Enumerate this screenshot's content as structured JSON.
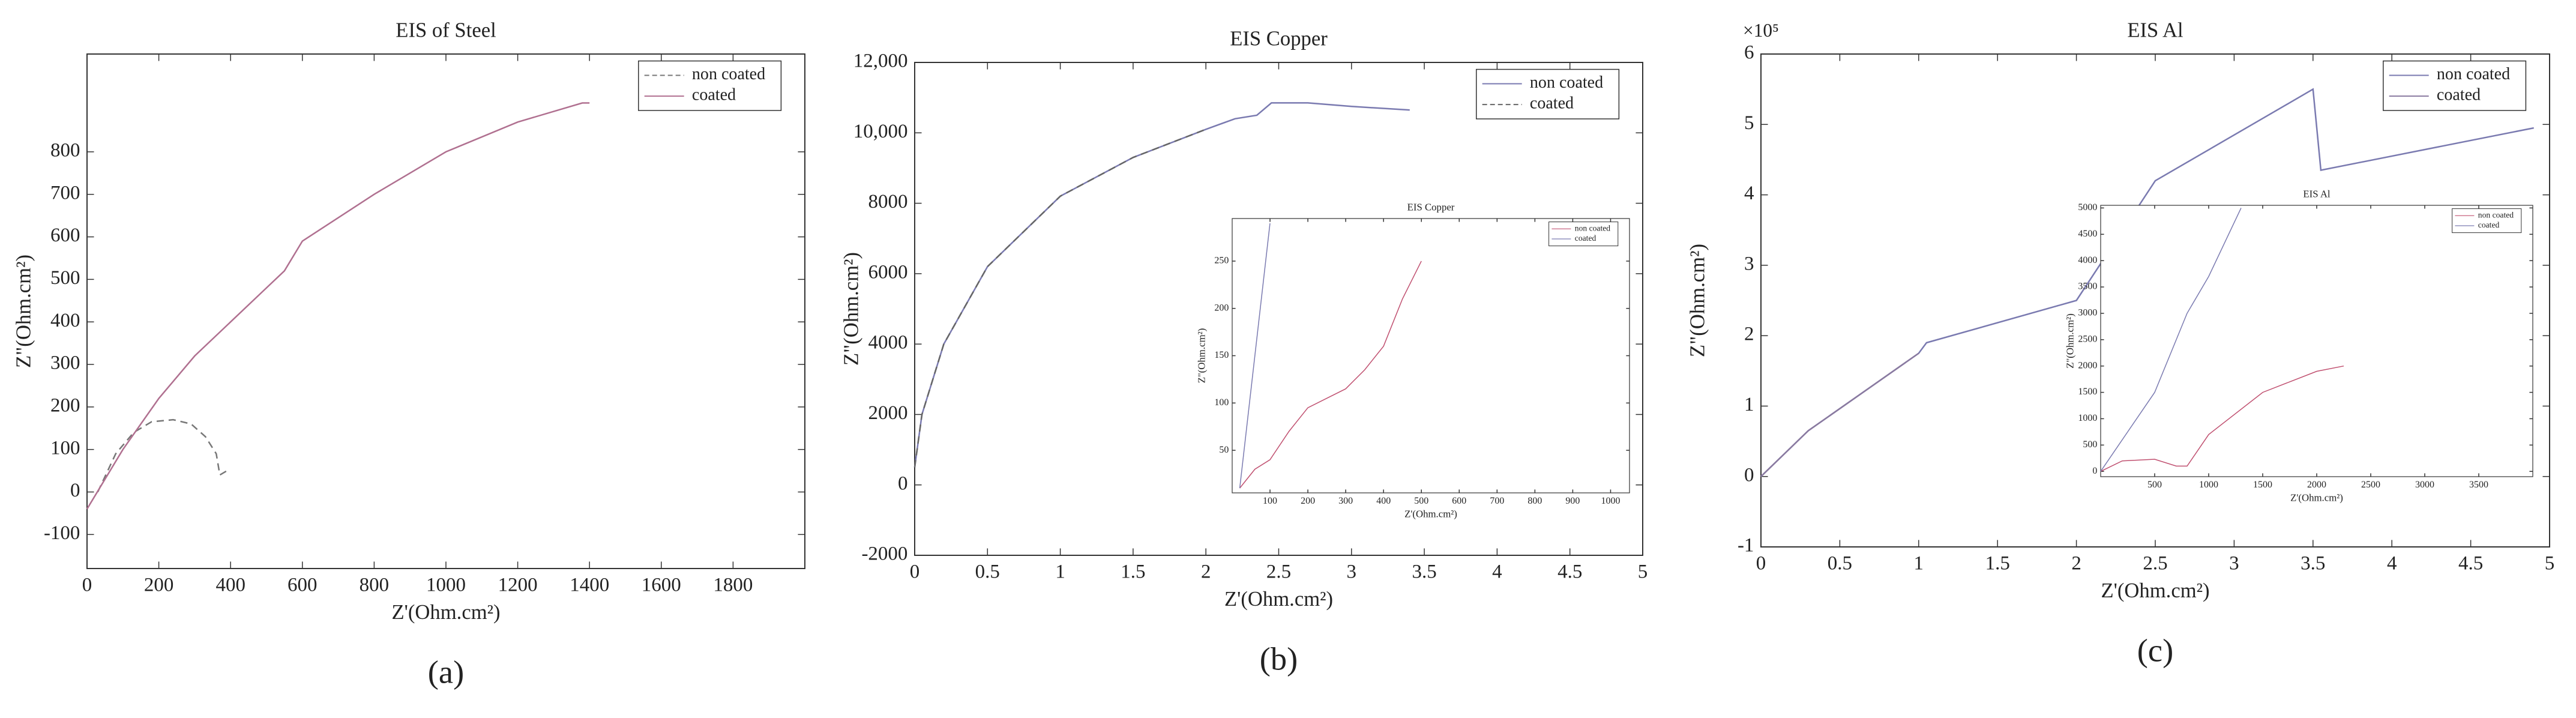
{
  "chart_data": [
    {
      "type": "line",
      "title": "EIS of Steel",
      "xlabel": "Z'(Ohm.cm²)",
      "ylabel": "Z\"(Ohm.cm²)",
      "panel_label": "(a)",
      "xlim": [
        0,
        2000
      ],
      "ylim": [
        -180,
        1030
      ],
      "xticks": [
        0,
        200,
        400,
        600,
        800,
        1000,
        1200,
        1400,
        1600,
        1800
      ],
      "yticks": [
        -100,
        0,
        100,
        200,
        300,
        400,
        500,
        600,
        700,
        800
      ],
      "legend": "upper right",
      "series": [
        {
          "name": "non coated",
          "color": "#777777",
          "dash": true,
          "x": [
            30,
            80,
            130,
            180,
            240,
            290,
            330,
            360,
            370,
            390
          ],
          "values": [
            0,
            90,
            140,
            165,
            170,
            160,
            130,
            90,
            40,
            50
          ]
        },
        {
          "name": "coated",
          "color": "#b07090",
          "dash": false,
          "x": [
            0,
            100,
            200,
            300,
            400,
            500,
            550,
            600,
            800,
            1000,
            1200,
            1380,
            1400
          ],
          "values": [
            -40,
            100,
            220,
            320,
            400,
            480,
            520,
            590,
            700,
            800,
            870,
            915,
            915
          ]
        }
      ]
    },
    {
      "type": "line",
      "title": "EIS Copper",
      "xlabel": "Z'(Ohm.cm²)",
      "ylabel": "Z\"(Ohm.cm²)",
      "panel_label": "(b)",
      "xlim": [
        0,
        5
      ],
      "ylim": [
        -2000,
        12000
      ],
      "xticks": [
        0,
        0.5,
        1,
        1.5,
        2,
        2.5,
        3,
        3.5,
        4,
        4.5,
        5
      ],
      "yticks": [
        -2000,
        0,
        2000,
        4000,
        6000,
        8000,
        {
          "value": 10000,
          "label": "10,000"
        },
        {
          "value": 12000,
          "label": "12,000"
        }
      ],
      "legend": "upper right",
      "series": [
        {
          "name": "non coated",
          "color": "#7a7ab0",
          "dash": false,
          "x": [
            0,
            0.05,
            0.2,
            0.5,
            1,
            1.5,
            2,
            2.2,
            2.35,
            2.45,
            2.7,
            3,
            3.4
          ],
          "values": [
            500,
            2000,
            4000,
            6200,
            8200,
            9300,
            10100,
            10400,
            10500,
            10850,
            10850,
            10750,
            10650
          ]
        },
        {
          "name": "coated",
          "color": "#666666",
          "dash": true,
          "x": [
            0,
            0.05,
            0.2,
            0.5,
            1,
            1.5,
            2
          ],
          "values": [
            500,
            2000,
            4000,
            6200,
            8200,
            9300,
            10100
          ]
        }
      ],
      "inset": {
        "type": "line",
        "title": "EIS Copper",
        "xlabel": "Z'(Ohm.cm²)",
        "ylabel": "Z\"(Ohm.cm²)",
        "xlim": [
          0,
          1050
        ],
        "ylim": [
          5,
          295
        ],
        "xticks": [
          100,
          200,
          300,
          400,
          500,
          600,
          700,
          800,
          900,
          1000
        ],
        "yticks": [
          50,
          100,
          150,
          200,
          250
        ],
        "legend": "upper right",
        "series": [
          {
            "name": "non coated",
            "color": "#c05070",
            "dash": false,
            "x": [
              20,
              60,
              100,
              150,
              200,
              250,
              300,
              350,
              400,
              450,
              500
            ],
            "values": [
              10,
              30,
              40,
              70,
              95,
              105,
              115,
              135,
              160,
              210,
              250
            ]
          },
          {
            "name": "coated",
            "color": "#7a7ab0",
            "dash": false,
            "x": [
              20,
              100
            ],
            "values": [
              10,
              290
            ]
          }
        ]
      }
    },
    {
      "type": "line",
      "title": "EIS Al",
      "xlabel": "Z'(Ohm.cm²)",
      "ylabel": "Z\"(Ohm.cm²)",
      "panel_label": "(c)",
      "annotation": "×10⁵",
      "xlim": [
        0,
        5
      ],
      "ylim": [
        -1,
        6
      ],
      "xticks": [
        0,
        0.5,
        1,
        1.5,
        2,
        2.5,
        3,
        3.5,
        4,
        4.5,
        5
      ],
      "yticks": [
        -1,
        0,
        1,
        2,
        3,
        4,
        5,
        6
      ],
      "legend": "upper right",
      "series": [
        {
          "name": "non coated",
          "color": "#7a7ab0",
          "dash": false,
          "x": [
            0,
            0.3,
            1,
            1.05,
            2,
            2.5,
            3.5,
            3.55,
            4.9
          ],
          "values": [
            0,
            0.65,
            1.75,
            1.9,
            2.5,
            4.2,
            5.5,
            4.35,
            4.95
          ]
        },
        {
          "name": "coated",
          "color": "#8a7aa0",
          "dash": false,
          "x": [
            0,
            0.3,
            1
          ],
          "values": [
            0,
            0.65,
            1.75
          ]
        }
      ],
      "inset": {
        "type": "line",
        "title": "EIS Al",
        "xlabel": "Z'(Ohm.cm²)",
        "ylabel": "Z\"(Ohm.cm²)",
        "xlim": [
          0,
          4000
        ],
        "ylim": [
          -100,
          5050
        ],
        "xticks": [
          500,
          1000,
          1500,
          2000,
          2500,
          3000,
          3500
        ],
        "yticks": [
          0,
          500,
          1000,
          1500,
          2000,
          2500,
          3000,
          3500,
          4000,
          4500,
          5000
        ],
        "legend": "upper right",
        "series": [
          {
            "name": "non coated",
            "color": "#c05070",
            "dash": false,
            "x": [
              0,
              200,
              500,
              700,
              800,
              1000,
              1500,
              2000,
              2250
            ],
            "values": [
              0,
              200,
              230,
              100,
              100,
              700,
              1500,
              1900,
              2000
            ]
          },
          {
            "name": "coated",
            "color": "#7a7ab0",
            "dash": false,
            "x": [
              0,
              500,
              800,
              1000,
              1300
            ],
            "values": [
              0,
              1500,
              3000,
              3700,
              5000
            ]
          }
        ]
      }
    }
  ]
}
